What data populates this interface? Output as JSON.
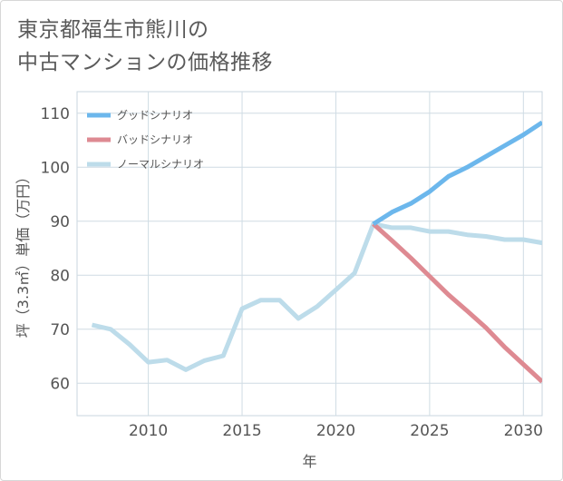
{
  "title_line1": "東京都福生市熊川の",
  "title_line2": "中古マンションの価格推移",
  "chart_data": {
    "type": "line",
    "xlabel": "年",
    "ylabel": "坪（3.3㎡）単価（万円）",
    "xlim": [
      2006.2,
      2031
    ],
    "ylim": [
      54,
      114
    ],
    "x_ticks": [
      2010,
      2015,
      2020,
      2025,
      2030
    ],
    "y_ticks": [
      60,
      70,
      80,
      90,
      100,
      110
    ],
    "grid": true,
    "legend_position": "top-left",
    "series": [
      {
        "name": "グッドシナリオ",
        "color": "#6cb7ec",
        "x": [
          2022,
          2023,
          2024,
          2025,
          2026,
          2027,
          2028,
          2029,
          2030,
          2031
        ],
        "values": [
          89.5,
          91.7,
          93.3,
          95.5,
          98.3,
          100.0,
          102.0,
          104.0,
          106.0,
          108.3
        ]
      },
      {
        "name": "バッドシナリオ",
        "color": "#de8a92",
        "x": [
          2022,
          2023,
          2024,
          2025,
          2026,
          2027,
          2028,
          2029,
          2030,
          2031
        ],
        "values": [
          89.5,
          86.4,
          83.2,
          79.8,
          76.4,
          73.4,
          70.3,
          66.7,
          63.5,
          60.3
        ]
      },
      {
        "name": "ノーマルシナリオ",
        "color": "#bddcea",
        "x": [
          2007,
          2008,
          2009,
          2010,
          2011,
          2012,
          2013,
          2014,
          2015,
          2016,
          2017,
          2018,
          2019,
          2020,
          2021,
          2022,
          2023,
          2024,
          2025,
          2026,
          2027,
          2028,
          2029,
          2030,
          2031
        ],
        "values": [
          70.8,
          70.0,
          67.2,
          63.9,
          64.3,
          62.5,
          64.2,
          65.1,
          73.8,
          75.4,
          75.4,
          72.0,
          74.2,
          77.3,
          80.4,
          89.5,
          88.8,
          88.8,
          88.1,
          88.1,
          87.5,
          87.2,
          86.6,
          86.6,
          86.0
        ]
      }
    ]
  }
}
